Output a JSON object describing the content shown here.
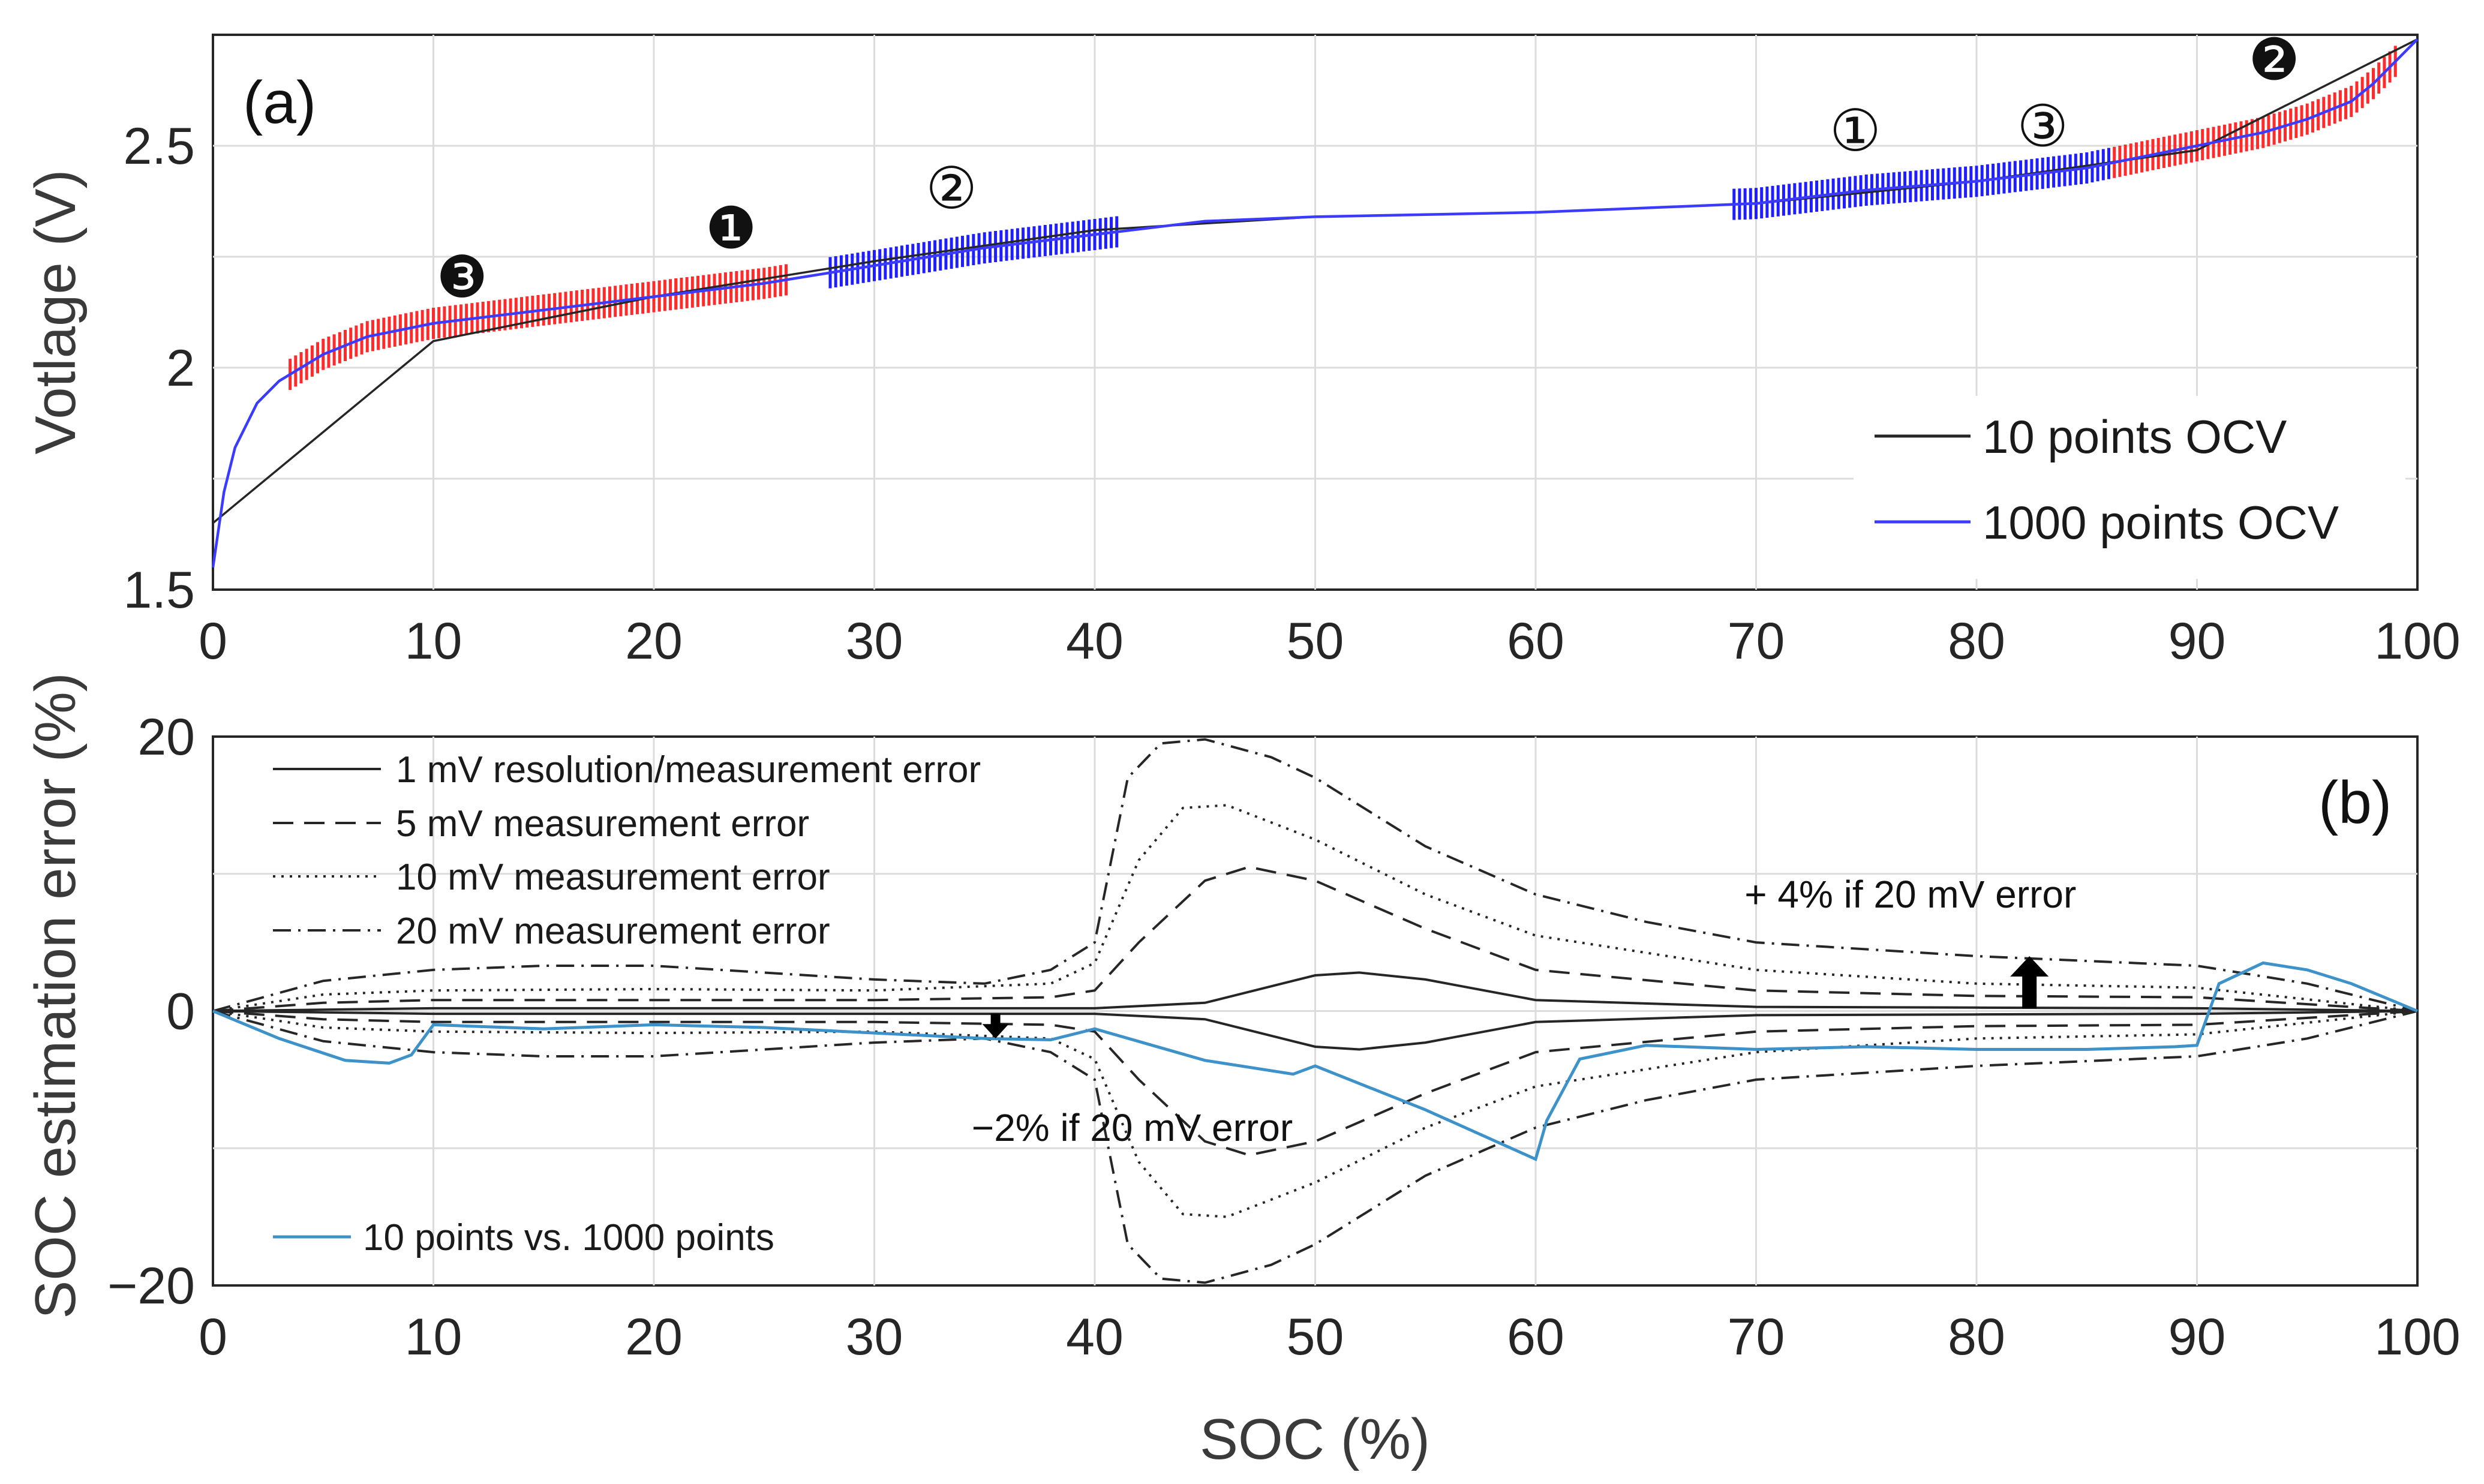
{
  "chart_data": [
    {
      "panel": "(a)",
      "type": "line",
      "xlabel": "",
      "ylabel": "Votlage (V)",
      "xlim": [
        0,
        100
      ],
      "ylim": [
        1.5,
        2.75
      ],
      "xticks": [
        "0",
        "10",
        "20",
        "30",
        "40",
        "50",
        "60",
        "70",
        "80",
        "90",
        "100"
      ],
      "yticks": [
        "1.5",
        "2",
        "2.5"
      ],
      "ytick_values": [
        1.5,
        2,
        2.5
      ],
      "grid": true,
      "legend_position": "bottom-right",
      "series": [
        {
          "name": "10 points OCV",
          "color": "#262626",
          "x": [
            0,
            10,
            20,
            30,
            40,
            50,
            60,
            70,
            80,
            90,
            100
          ],
          "y": [
            1.65,
            2.06,
            2.16,
            2.24,
            2.31,
            2.34,
            2.35,
            2.37,
            2.42,
            2.49,
            2.74
          ]
        },
        {
          "name": "1000 points OCV",
          "color": "#3b3bff",
          "x": [
            0,
            0.5,
            1,
            2,
            3,
            4,
            5,
            7,
            10,
            15,
            20,
            25,
            30,
            35,
            40,
            45,
            50,
            55,
            60,
            65,
            70,
            75,
            80,
            85,
            90,
            93,
            95,
            97,
            98,
            99,
            100
          ],
          "y": [
            1.55,
            1.72,
            1.82,
            1.92,
            1.97,
            2.0,
            2.03,
            2.07,
            2.1,
            2.13,
            2.16,
            2.19,
            2.23,
            2.27,
            2.3,
            2.33,
            2.34,
            2.345,
            2.35,
            2.36,
            2.37,
            2.4,
            2.42,
            2.45,
            2.5,
            2.53,
            2.56,
            2.6,
            2.64,
            2.69,
            2.74
          ]
        }
      ],
      "marker_bands": [
        {
          "label": "❶",
          "color": "#ff2a2a",
          "x_start": 21,
          "x_end": 26
        },
        {
          "label": "❷",
          "color": "#ff2a2a",
          "x_start": 86,
          "x_end": 99
        },
        {
          "label": "❸",
          "color": "#ff2a2a",
          "x_start": 3.5,
          "x_end": 21
        },
        {
          "label": "①",
          "color": "#1e1eff",
          "x_start": 69,
          "x_end": 86
        },
        {
          "label": "②",
          "color": "#1e1eff",
          "x_start": 28,
          "x_end": 41
        },
        {
          "label": "③",
          "color": "#1e1eff",
          "x_start": 69,
          "x_end": 86
        }
      ],
      "annotations": [
        {
          "text": "❶",
          "x": 23.5,
          "y": 2.31,
          "style": "filled"
        },
        {
          "text": "❷",
          "x": 93.5,
          "y": 2.69,
          "style": "filled"
        },
        {
          "text": "❸",
          "x": 11.3,
          "y": 2.2,
          "style": "filled"
        },
        {
          "text": "①",
          "x": 74.5,
          "y": 2.53,
          "style": "open"
        },
        {
          "text": "②",
          "x": 33.5,
          "y": 2.4,
          "style": "open"
        },
        {
          "text": "③",
          "x": 83,
          "y": 2.54,
          "style": "open"
        }
      ]
    },
    {
      "panel": "(b)",
      "type": "line",
      "xlabel": "SOC (%)",
      "ylabel": "SOC estimation error (%)",
      "xlim": [
        0,
        100
      ],
      "ylim": [
        -20,
        20
      ],
      "xticks": [
        "0",
        "10",
        "20",
        "30",
        "40",
        "50",
        "60",
        "70",
        "80",
        "90",
        "100"
      ],
      "yticks": [
        "−20",
        "0",
        "20"
      ],
      "ytick_values": [
        -20,
        0,
        20
      ],
      "grid": true,
      "legend_position": "top-left",
      "series": [
        {
          "name": "1 mV resolution/measurement error",
          "color": "#262626",
          "dash": "solid",
          "x": [
            0,
            10,
            20,
            30,
            40,
            45,
            50,
            52,
            55,
            60,
            70,
            80,
            90,
            100
          ],
          "y": [
            0,
            0.2,
            0.2,
            0.2,
            0.2,
            0.6,
            2.6,
            2.8,
            2.3,
            0.8,
            0.3,
            0.25,
            0.2,
            0
          ],
          "mirror": true
        },
        {
          "name": "5 mV measurement error",
          "color": "#262626",
          "dash": "long",
          "x": [
            0,
            5,
            10,
            20,
            30,
            38,
            40,
            42,
            45,
            47,
            50,
            55,
            60,
            70,
            80,
            90,
            100
          ],
          "y": [
            0,
            0.6,
            0.8,
            0.8,
            0.8,
            1.0,
            1.5,
            5.0,
            9.5,
            10.5,
            9.5,
            6.0,
            3.0,
            1.5,
            1.1,
            1.0,
            0
          ],
          "mirror": true
        },
        {
          "name": "10 mV measurement error",
          "color": "#262626",
          "dash": "dotted",
          "x": [
            0,
            5,
            10,
            20,
            30,
            38,
            40,
            42,
            44,
            46,
            50,
            55,
            60,
            70,
            80,
            90,
            100
          ],
          "y": [
            0,
            1.2,
            1.5,
            1.6,
            1.5,
            2.0,
            3.5,
            11.0,
            14.8,
            15.0,
            12.5,
            8.5,
            5.5,
            3.0,
            2.0,
            1.7,
            0
          ],
          "mirror": true
        },
        {
          "name": "20 mV measurement error",
          "color": "#262626",
          "dash": "dashdot",
          "x": [
            0,
            5,
            10,
            15,
            20,
            30,
            35,
            38,
            40,
            41.5,
            43,
            45,
            48,
            50,
            55,
            60,
            65,
            70,
            80,
            90,
            95,
            100
          ],
          "y": [
            0,
            2.2,
            3.0,
            3.3,
            3.3,
            2.3,
            2.0,
            3.0,
            5.0,
            17.0,
            19.5,
            19.8,
            18.5,
            17.0,
            12.0,
            8.5,
            6.5,
            5.0,
            4.0,
            3.3,
            2.0,
            0
          ],
          "mirror": true
        },
        {
          "name": "10 points vs. 1000 points",
          "color": "#3d92c9",
          "dash": "solid",
          "x": [
            0,
            3,
            6,
            8,
            9,
            10,
            15,
            20,
            25,
            30,
            35,
            38,
            40,
            45,
            49,
            50,
            55,
            60,
            60.5,
            62,
            65,
            70,
            75,
            80,
            85,
            89,
            90,
            91,
            93,
            95,
            97,
            100
          ],
          "y": [
            0,
            -2.0,
            -3.6,
            -3.8,
            -3.2,
            -1.0,
            -1.3,
            -1.0,
            -1.2,
            -1.6,
            -2.0,
            -2.1,
            -1.3,
            -3.6,
            -4.6,
            -4.0,
            -7.2,
            -10.8,
            -8.0,
            -3.5,
            -2.5,
            -2.8,
            -2.6,
            -2.8,
            -2.8,
            -2.6,
            -2.5,
            2.0,
            3.5,
            3.0,
            2.0,
            0
          ],
          "mirror": false
        }
      ],
      "annotations": [
        {
          "text": "+ 4% if 20 mV error",
          "x": 77,
          "y": 8.5,
          "arrow": "up",
          "arrow_x": 82.4
        },
        {
          "text": "−2% if 20 mV error",
          "x": 41.7,
          "y": -8.5,
          "arrow": "down",
          "arrow_x": 35.5
        }
      ]
    }
  ]
}
